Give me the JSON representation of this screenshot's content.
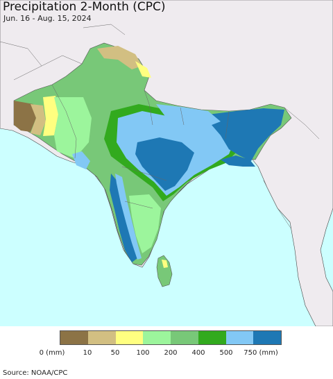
{
  "header": {
    "title": "Precipitation 2-Month (CPC)",
    "subtitle": "Jun. 16 - Aug. 15, 2024"
  },
  "legend": {
    "colors": [
      "#8c7346",
      "#d2bf82",
      "#ffff80",
      "#9cf59c",
      "#78c878",
      "#32aa1e",
      "#82c8f5",
      "#1e78b4"
    ],
    "labels": [
      "0 (mm)",
      "10",
      "50",
      "100",
      "200",
      "400",
      "500",
      "750 (mm)"
    ]
  },
  "map": {
    "ocean_color": "#ccffff",
    "land_color": "#efebef",
    "border_color": "#333333"
  },
  "footer": {
    "source": "Source: NOAA/CPC"
  }
}
